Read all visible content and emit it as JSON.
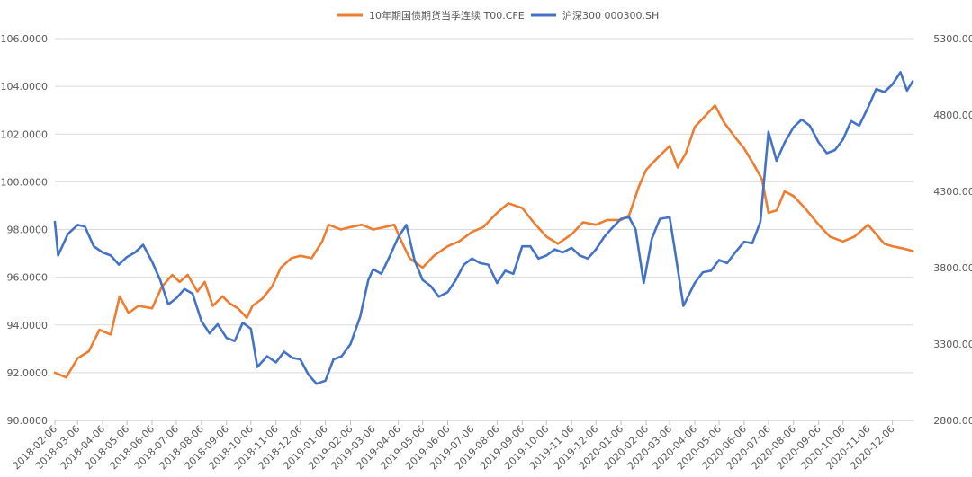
{
  "chart_data": {
    "type": "line",
    "title": "",
    "legend_position": "top",
    "grid": "horizontal",
    "x_ticks": [
      "2018-02-06",
      "2018-03-06",
      "2018-04-06",
      "2018-05-06",
      "2018-06-06",
      "2018-07-06",
      "2018-08-06",
      "2018-09-06",
      "2018-10-06",
      "2018-11-06",
      "2018-12-06",
      "2019-01-06",
      "2019-02-06",
      "2019-03-06",
      "2019-04-06",
      "2019-05-06",
      "2019-06-06",
      "2019-07-06",
      "2019-08-06",
      "2019-09-06",
      "2019-10-06",
      "2019-11-06",
      "2019-12-06",
      "2020-01-06",
      "2020-02-06",
      "2020-03-06",
      "2020-04-06",
      "2020-05-06",
      "2020-06-06",
      "2020-07-06",
      "2020-08-06",
      "2020-09-06",
      "2020-10-06",
      "2020-11-06",
      "2020-12-06"
    ],
    "y_left": {
      "range": [
        90,
        106
      ],
      "ticks": [
        "90.0000",
        "92.0000",
        "94.0000",
        "96.0000",
        "98.0000",
        "100.0000",
        "102.0000",
        "104.0000",
        "106.0000"
      ]
    },
    "y_right": {
      "range": [
        2800,
        5300
      ],
      "ticks": [
        "2800.0000",
        "3300.0000",
        "3800.0000",
        "4300.0000",
        "4800.0000",
        "5300.0000"
      ]
    },
    "series": [
      {
        "name": "10年期国债期货当季连续 T00.CFE",
        "axis": "left",
        "color": "#ED7D31",
        "points": [
          [
            "2018-02-06",
            92.0
          ],
          [
            "2018-02-20",
            91.8
          ],
          [
            "2018-03-06",
            92.6
          ],
          [
            "2018-03-20",
            92.9
          ],
          [
            "2018-04-02",
            93.8
          ],
          [
            "2018-04-16",
            93.6
          ],
          [
            "2018-04-27",
            95.2
          ],
          [
            "2018-05-08",
            94.5
          ],
          [
            "2018-05-20",
            94.8
          ],
          [
            "2018-06-06",
            94.7
          ],
          [
            "2018-06-18",
            95.6
          ],
          [
            "2018-07-01",
            96.1
          ],
          [
            "2018-07-10",
            95.8
          ],
          [
            "2018-07-20",
            96.1
          ],
          [
            "2018-08-01",
            95.4
          ],
          [
            "2018-08-10",
            95.8
          ],
          [
            "2018-08-20",
            94.8
          ],
          [
            "2018-09-01",
            95.2
          ],
          [
            "2018-09-10",
            94.9
          ],
          [
            "2018-09-20",
            94.7
          ],
          [
            "2018-10-01",
            94.3
          ],
          [
            "2018-10-08",
            94.8
          ],
          [
            "2018-10-20",
            95.1
          ],
          [
            "2018-11-01",
            95.6
          ],
          [
            "2018-11-12",
            96.4
          ],
          [
            "2018-11-25",
            96.8
          ],
          [
            "2018-12-06",
            96.9
          ],
          [
            "2018-12-20",
            96.8
          ],
          [
            "2019-01-02",
            97.5
          ],
          [
            "2019-01-10",
            98.2
          ],
          [
            "2019-01-25",
            98.0
          ],
          [
            "2019-02-06",
            98.1
          ],
          [
            "2019-02-20",
            98.2
          ],
          [
            "2019-03-06",
            98.0
          ],
          [
            "2019-03-20",
            98.1
          ],
          [
            "2019-04-01",
            98.2
          ],
          [
            "2019-04-10",
            97.5
          ],
          [
            "2019-04-20",
            96.8
          ],
          [
            "2019-05-06",
            96.4
          ],
          [
            "2019-05-20",
            96.9
          ],
          [
            "2019-06-06",
            97.3
          ],
          [
            "2019-06-20",
            97.5
          ],
          [
            "2019-07-06",
            97.9
          ],
          [
            "2019-07-20",
            98.1
          ],
          [
            "2019-08-06",
            98.7
          ],
          [
            "2019-08-20",
            99.1
          ],
          [
            "2019-09-06",
            98.9
          ],
          [
            "2019-09-20",
            98.3
          ],
          [
            "2019-10-06",
            97.7
          ],
          [
            "2019-10-20",
            97.4
          ],
          [
            "2019-11-06",
            97.8
          ],
          [
            "2019-11-20",
            98.3
          ],
          [
            "2019-12-06",
            98.2
          ],
          [
            "2019-12-20",
            98.4
          ],
          [
            "2020-01-06",
            98.4
          ],
          [
            "2020-01-16",
            98.6
          ],
          [
            "2020-01-28",
            99.8
          ],
          [
            "2020-02-06",
            100.5
          ],
          [
            "2020-02-20",
            101.0
          ],
          [
            "2020-03-06",
            101.5
          ],
          [
            "2020-03-16",
            100.6
          ],
          [
            "2020-03-26",
            101.2
          ],
          [
            "2020-04-06",
            102.3
          ],
          [
            "2020-04-20",
            102.8
          ],
          [
            "2020-05-01",
            103.2
          ],
          [
            "2020-05-12",
            102.5
          ],
          [
            "2020-05-25",
            101.9
          ],
          [
            "2020-06-06",
            101.4
          ],
          [
            "2020-06-20",
            100.6
          ],
          [
            "2020-06-28",
            100.1
          ],
          [
            "2020-07-06",
            98.7
          ],
          [
            "2020-07-16",
            98.8
          ],
          [
            "2020-07-26",
            99.6
          ],
          [
            "2020-08-06",
            99.4
          ],
          [
            "2020-08-20",
            98.9
          ],
          [
            "2020-09-06",
            98.2
          ],
          [
            "2020-09-20",
            97.7
          ],
          [
            "2020-10-06",
            97.5
          ],
          [
            "2020-10-20",
            97.7
          ],
          [
            "2020-11-06",
            98.2
          ],
          [
            "2020-11-16",
            97.8
          ],
          [
            "2020-11-26",
            97.4
          ],
          [
            "2020-12-06",
            97.3
          ],
          [
            "2020-12-20",
            97.2
          ],
          [
            "2020-12-31",
            97.1
          ]
        ]
      },
      {
        "name": "沪深300 000300.SH",
        "axis": "right",
        "color": "#4472C4",
        "points": [
          [
            "2018-02-06",
            4100
          ],
          [
            "2018-02-10",
            3880
          ],
          [
            "2018-02-22",
            4020
          ],
          [
            "2018-03-06",
            4080
          ],
          [
            "2018-03-15",
            4070
          ],
          [
            "2018-03-26",
            3940
          ],
          [
            "2018-04-06",
            3900
          ],
          [
            "2018-04-16",
            3880
          ],
          [
            "2018-04-26",
            3820
          ],
          [
            "2018-05-06",
            3870
          ],
          [
            "2018-05-16",
            3900
          ],
          [
            "2018-05-26",
            3950
          ],
          [
            "2018-06-06",
            3840
          ],
          [
            "2018-06-16",
            3720
          ],
          [
            "2018-06-26",
            3560
          ],
          [
            "2018-07-06",
            3600
          ],
          [
            "2018-07-16",
            3660
          ],
          [
            "2018-07-26",
            3630
          ],
          [
            "2018-08-06",
            3450
          ],
          [
            "2018-08-16",
            3370
          ],
          [
            "2018-08-26",
            3430
          ],
          [
            "2018-09-06",
            3340
          ],
          [
            "2018-09-16",
            3320
          ],
          [
            "2018-09-26",
            3440
          ],
          [
            "2018-10-06",
            3400
          ],
          [
            "2018-10-14",
            3150
          ],
          [
            "2018-10-26",
            3220
          ],
          [
            "2018-11-06",
            3180
          ],
          [
            "2018-11-16",
            3250
          ],
          [
            "2018-11-26",
            3210
          ],
          [
            "2018-12-06",
            3200
          ],
          [
            "2018-12-16",
            3100
          ],
          [
            "2018-12-26",
            3040
          ],
          [
            "2019-01-06",
            3060
          ],
          [
            "2019-01-16",
            3200
          ],
          [
            "2019-01-26",
            3220
          ],
          [
            "2019-02-06",
            3300
          ],
          [
            "2019-02-18",
            3480
          ],
          [
            "2019-02-28",
            3720
          ],
          [
            "2019-03-06",
            3790
          ],
          [
            "2019-03-16",
            3760
          ],
          [
            "2019-03-26",
            3870
          ],
          [
            "2019-04-06",
            4000
          ],
          [
            "2019-04-16",
            4080
          ],
          [
            "2019-04-26",
            3850
          ],
          [
            "2019-05-06",
            3720
          ],
          [
            "2019-05-16",
            3680
          ],
          [
            "2019-05-26",
            3610
          ],
          [
            "2019-06-06",
            3640
          ],
          [
            "2019-06-16",
            3720
          ],
          [
            "2019-06-26",
            3820
          ],
          [
            "2019-07-06",
            3860
          ],
          [
            "2019-07-16",
            3830
          ],
          [
            "2019-07-26",
            3820
          ],
          [
            "2019-08-06",
            3700
          ],
          [
            "2019-08-16",
            3780
          ],
          [
            "2019-08-26",
            3760
          ],
          [
            "2019-09-06",
            3940
          ],
          [
            "2019-09-16",
            3940
          ],
          [
            "2019-09-26",
            3860
          ],
          [
            "2019-10-06",
            3880
          ],
          [
            "2019-10-16",
            3920
          ],
          [
            "2019-10-26",
            3900
          ],
          [
            "2019-11-06",
            3930
          ],
          [
            "2019-11-16",
            3880
          ],
          [
            "2019-11-26",
            3860
          ],
          [
            "2019-12-06",
            3920
          ],
          [
            "2019-12-16",
            4000
          ],
          [
            "2019-12-26",
            4060
          ],
          [
            "2020-01-06",
            4120
          ],
          [
            "2020-01-16",
            4130
          ],
          [
            "2020-01-24",
            4050
          ],
          [
            "2020-02-03",
            3700
          ],
          [
            "2020-02-13",
            3990
          ],
          [
            "2020-02-23",
            4120
          ],
          [
            "2020-03-06",
            4130
          ],
          [
            "2020-03-12",
            3930
          ],
          [
            "2020-03-23",
            3550
          ],
          [
            "2020-04-06",
            3700
          ],
          [
            "2020-04-16",
            3770
          ],
          [
            "2020-04-26",
            3780
          ],
          [
            "2020-05-06",
            3850
          ],
          [
            "2020-05-16",
            3830
          ],
          [
            "2020-05-26",
            3900
          ],
          [
            "2020-06-06",
            3970
          ],
          [
            "2020-06-16",
            3960
          ],
          [
            "2020-06-26",
            4100
          ],
          [
            "2020-07-06",
            4690
          ],
          [
            "2020-07-16",
            4500
          ],
          [
            "2020-07-26",
            4620
          ],
          [
            "2020-08-06",
            4720
          ],
          [
            "2020-08-16",
            4770
          ],
          [
            "2020-08-26",
            4730
          ],
          [
            "2020-09-06",
            4620
          ],
          [
            "2020-09-16",
            4550
          ],
          [
            "2020-09-26",
            4570
          ],
          [
            "2020-10-06",
            4640
          ],
          [
            "2020-10-16",
            4760
          ],
          [
            "2020-10-26",
            4730
          ],
          [
            "2020-11-06",
            4850
          ],
          [
            "2020-11-16",
            4970
          ],
          [
            "2020-11-26",
            4950
          ],
          [
            "2020-12-06",
            5000
          ],
          [
            "2020-12-16",
            5080
          ],
          [
            "2020-12-24",
            4960
          ],
          [
            "2020-12-31",
            5020
          ]
        ]
      }
    ]
  }
}
